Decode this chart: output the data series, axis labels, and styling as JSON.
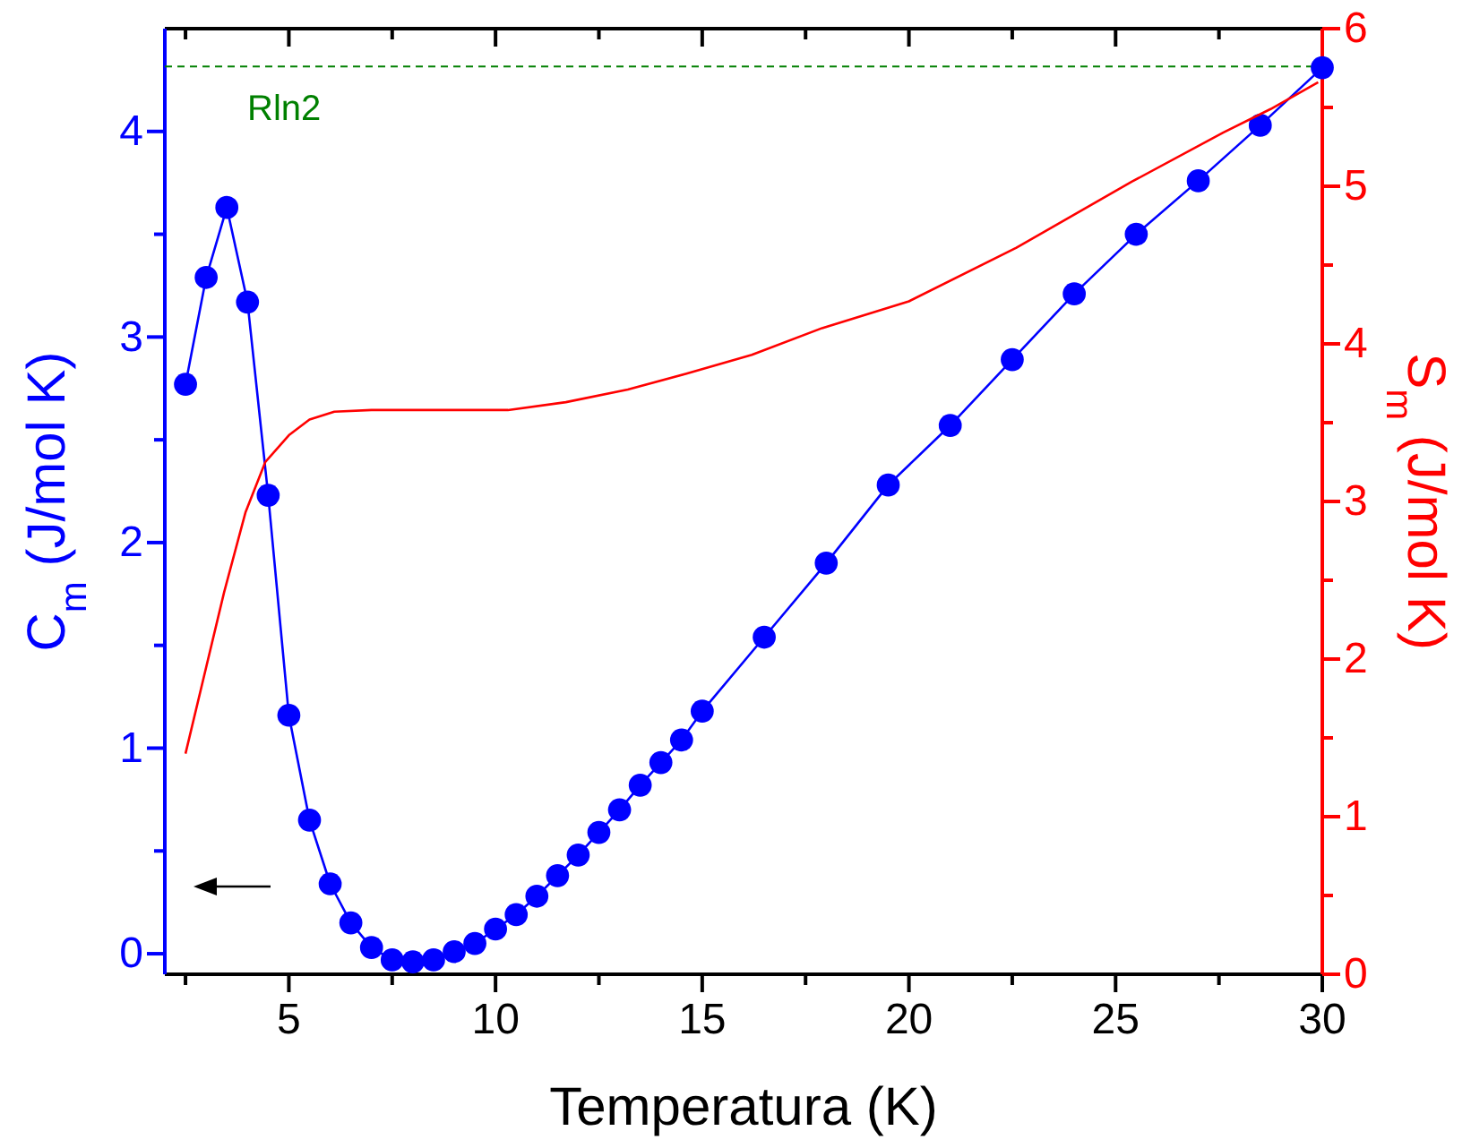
{
  "chart_data": {
    "type": "line",
    "xlabel": "Temperatura (K)",
    "ylabel": "C$_{m}$ (J/mol K)",
    "y2label": "S$_{m}$ (J/mol K)",
    "xlim": [
      2,
      30
    ],
    "xticks": [
      {
        "value": 2.5,
        "label": null
      },
      5,
      {
        "value": 7.5,
        "label": null
      },
      10,
      {
        "value": 12.5,
        "label": null
      },
      15,
      {
        "value": 17.5,
        "label": null
      },
      20,
      {
        "value": 22.5,
        "label": null
      },
      25,
      {
        "value": 27.5,
        "label": null
      },
      30
    ],
    "ylim": [
      -0.1,
      4.5
    ],
    "yticks": [
      0,
      {
        "value": 0.5,
        "label": null
      },
      1,
      {
        "value": 1.5,
        "label": null
      },
      2,
      {
        "value": 2.5,
        "label": null
      },
      3,
      {
        "value": 3.5,
        "label": null
      },
      4
    ],
    "y2lim": [
      0,
      6
    ],
    "y2ticks": [
      0,
      {
        "value": 0.5,
        "label": null
      },
      1,
      {
        "value": 1.5,
        "label": null
      },
      2,
      {
        "value": 2.5,
        "label": null
      },
      3,
      {
        "value": 3.5,
        "label": null
      },
      4,
      {
        "value": 4.5,
        "label": null
      },
      5,
      {
        "value": 5.5,
        "label": null
      },
      6
    ],
    "grid": false,
    "ref_lines": [
      {
        "axis": "y2",
        "value": 5.76,
        "label": "Rln2",
        "color": "#008000",
        "line_style": "dashed"
      }
    ],
    "series": [
      {
        "color": "#0000ff",
        "marker": "circle",
        "axis": "y",
        "x": [
          2.5,
          3,
          3.5,
          4,
          4.5,
          5,
          5.5,
          6,
          6.5,
          7,
          7.5,
          8,
          8.5,
          9,
          9.5,
          10,
          10.5,
          11,
          11.5,
          12,
          12.5,
          13,
          13.5,
          14,
          14.5,
          15,
          16.5,
          18,
          19.5,
          21,
          22.5,
          24,
          25.5,
          27,
          28.5,
          30
        ],
        "values": [
          2.77,
          3.29,
          3.63,
          3.17,
          2.23,
          1.16,
          0.65,
          0.34,
          0.15,
          0.03,
          -0.03,
          -0.04,
          -0.03,
          0.01,
          0.05,
          0.12,
          0.19,
          0.28,
          0.38,
          0.48,
          0.59,
          0.7,
          0.82,
          0.93,
          1.04,
          1.18,
          1.54,
          1.9,
          2.28,
          2.57,
          2.89,
          3.21,
          3.5,
          3.76,
          4.03,
          4.31
        ]
      },
      {
        "color": "#ff0000",
        "marker": "none",
        "axis": "y2",
        "x": [
          2.5,
          3.43,
          3.95,
          4.43,
          5,
          5.5,
          6.1,
          7,
          8.8,
          10.3,
          11.7,
          13.2,
          14.6,
          16.2,
          17.9,
          20,
          22.6,
          25.4,
          27.6,
          28.75,
          29.9
        ],
        "values": [
          1.4,
          2.42,
          2.93,
          3.25,
          3.42,
          3.52,
          3.57,
          3.58,
          3.58,
          3.58,
          3.63,
          3.71,
          3.81,
          3.93,
          4.1,
          4.27,
          4.61,
          5.03,
          5.34,
          5.49,
          5.66
        ]
      }
    ]
  }
}
